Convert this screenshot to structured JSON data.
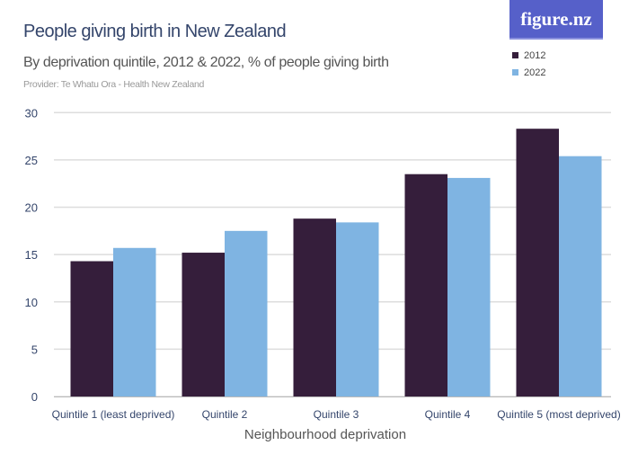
{
  "header": {
    "title": "People giving birth in New Zealand",
    "subtitle": "By deprivation quintile, 2012 & 2022, % of people giving birth",
    "provider": "Provider: Te Whatu Ora - Health New Zealand",
    "logo": "figure.nz"
  },
  "colors": {
    "2012": "#351e3b",
    "2022": "#7fb4e2",
    "grid": "#dddddd",
    "axis_text": "#34456b"
  },
  "chart_data": {
    "type": "bar",
    "title": "People giving birth in New Zealand",
    "subtitle": "By deprivation quintile, 2012 & 2022, % of people giving birth",
    "xlabel": "Neighbourhood deprivation",
    "ylabel": "",
    "ylim": [
      0,
      30
    ],
    "yticks": [
      0,
      5,
      10,
      15,
      20,
      25,
      30
    ],
    "grid": true,
    "legend": "top-right",
    "categories": [
      "Quintile 1 (least deprived)",
      "Quintile 2",
      "Quintile 3",
      "Quintile 4",
      "Quintile 5 (most deprived)"
    ],
    "series": [
      {
        "name": "2012",
        "values": [
          14.3,
          15.2,
          18.8,
          23.5,
          28.3
        ]
      },
      {
        "name": "2022",
        "values": [
          15.7,
          17.5,
          18.4,
          23.1,
          25.4
        ]
      }
    ]
  }
}
